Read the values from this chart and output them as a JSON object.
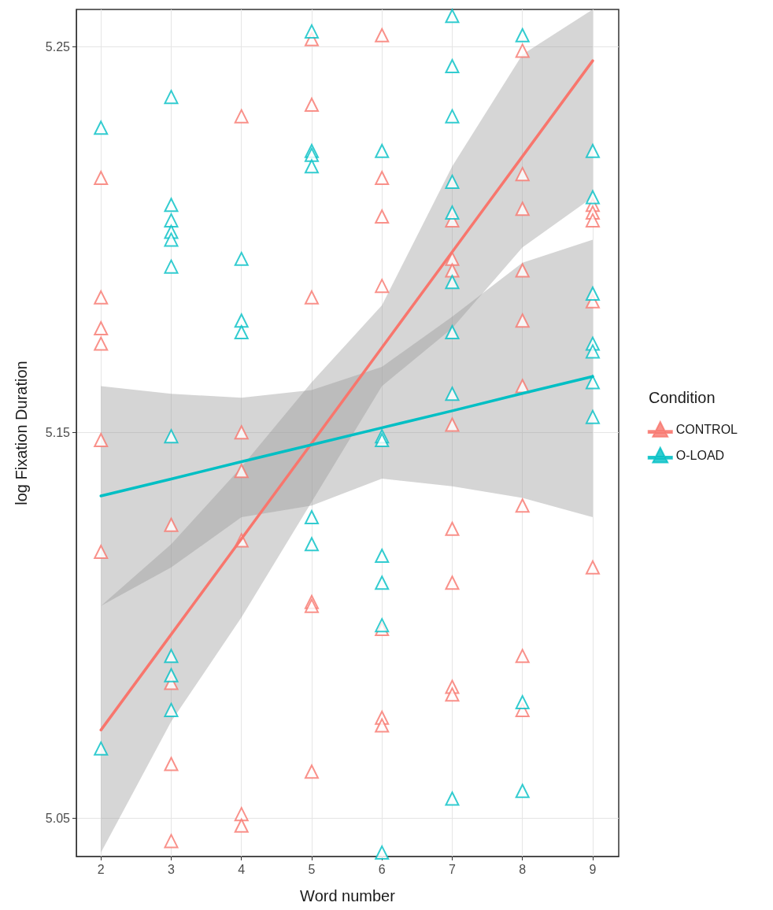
{
  "chart_data": {
    "type": "scatter",
    "xlabel": "Word number",
    "ylabel": "log Fixation Duration",
    "legend_title": "Condition",
    "legend": "right",
    "grid": true,
    "marker": "triangle",
    "xlim": [
      1.65,
      9.37
    ],
    "xticks": [
      2,
      3,
      4,
      5,
      6,
      7,
      8,
      9
    ],
    "ylim": [
      5.04,
      5.2597
    ],
    "yticks": [
      5.05,
      5.15,
      5.25
    ],
    "series": [
      {
        "name": "CONTROL",
        "color": "#f8766d",
        "x": [
          2,
          2,
          2,
          2,
          2,
          2,
          3,
          3,
          3,
          3,
          4,
          4,
          4,
          4,
          4,
          4,
          5,
          5,
          5,
          5,
          5,
          5,
          6,
          6,
          6,
          6,
          6,
          6,
          6,
          7,
          7,
          7,
          7,
          7,
          7,
          7,
          7,
          8,
          8,
          8,
          8,
          8,
          8,
          8,
          8,
          8,
          9,
          9,
          9,
          9,
          9
        ],
        "values": [
          5.216,
          5.185,
          5.177,
          5.173,
          5.148,
          5.119,
          5.126,
          5.085,
          5.064,
          5.044,
          5.232,
          5.15,
          5.14,
          5.122,
          5.051,
          5.048,
          5.252,
          5.235,
          5.185,
          5.106,
          5.105,
          5.062,
          5.253,
          5.216,
          5.206,
          5.188,
          5.099,
          5.076,
          5.074,
          5.205,
          5.195,
          5.192,
          5.152,
          5.125,
          5.111,
          5.084,
          5.082,
          5.249,
          5.217,
          5.208,
          5.192,
          5.179,
          5.162,
          5.131,
          5.092,
          5.078,
          5.209,
          5.207,
          5.205,
          5.184,
          5.115
        ]
      },
      {
        "name": "O-LOAD",
        "color": "#00bfc4",
        "x": [
          2,
          2,
          3,
          3,
          3,
          3,
          3,
          3,
          3,
          3,
          3,
          3,
          4,
          4,
          4,
          5,
          5,
          5,
          5,
          5,
          5,
          6,
          6,
          6,
          6,
          6,
          6,
          6,
          7,
          7,
          7,
          7,
          7,
          7,
          7,
          7,
          7,
          8,
          8,
          8,
          9,
          9,
          9,
          9,
          9,
          9,
          9
        ],
        "values": [
          5.229,
          5.068,
          5.237,
          5.209,
          5.205,
          5.202,
          5.2,
          5.193,
          5.149,
          5.092,
          5.087,
          5.078,
          5.195,
          5.179,
          5.176,
          5.254,
          5.223,
          5.222,
          5.219,
          5.128,
          5.121,
          5.223,
          5.149,
          5.148,
          5.118,
          5.111,
          5.1,
          5.041,
          5.258,
          5.245,
          5.232,
          5.215,
          5.207,
          5.189,
          5.176,
          5.16,
          5.055,
          5.253,
          5.08,
          5.057,
          5.223,
          5.211,
          5.186,
          5.173,
          5.171,
          5.163,
          5.154
        ]
      },
      {
        "type": "line",
        "marker": "none",
        "color": "#f8766d",
        "x": [
          2,
          3,
          4,
          5,
          6,
          7,
          8,
          9
        ],
        "values": [
          5.0728,
          5.0976,
          5.1224,
          5.1472,
          5.172,
          5.1968,
          5.2216,
          5.2464
        ],
        "lower": [
          5.041,
          5.075,
          5.102,
          5.132,
          5.162,
          5.177,
          5.198,
          5.211
        ],
        "upper": [
          5.105,
          5.121,
          5.141,
          5.163,
          5.183,
          5.219,
          5.248,
          5.2597
        ]
      },
      {
        "type": "line",
        "marker": "none",
        "color": "#00bfc4",
        "x": [
          2,
          3,
          4,
          5,
          6,
          7,
          8,
          9
        ],
        "values": [
          5.1335,
          5.1379,
          5.1424,
          5.1468,
          5.1512,
          5.1556,
          5.1601,
          5.1645
        ],
        "lower": [
          5.105,
          5.115,
          5.128,
          5.131,
          5.138,
          5.136,
          5.133,
          5.128
        ],
        "upper": [
          5.162,
          5.16,
          5.159,
          5.161,
          5.167,
          5.18,
          5.194,
          5.2
        ]
      }
    ]
  }
}
